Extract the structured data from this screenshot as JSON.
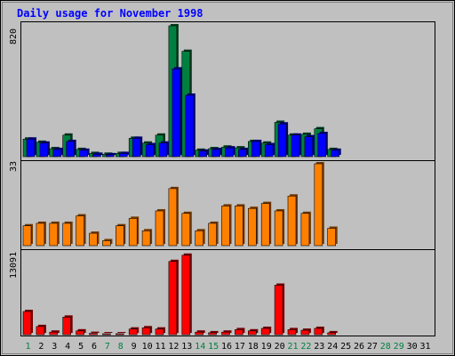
{
  "chart_data": [
    {
      "type": "bar",
      "title": "Daily usage for November 1998",
      "x": [
        1,
        2,
        3,
        4,
        5,
        6,
        7,
        8,
        9,
        10,
        11,
        12,
        13,
        14,
        15,
        16,
        17,
        18,
        19,
        20,
        21,
        22,
        23,
        24,
        25,
        26,
        27,
        28,
        29,
        30,
        31
      ],
      "weekend_days": [
        1,
        7,
        8,
        14,
        15,
        21,
        22,
        28,
        29
      ],
      "ytick_label": "820",
      "ylim": [
        0,
        820
      ],
      "series": [
        {
          "color": "#008040",
          "values": [
            110,
            90,
            50,
            135,
            45,
            20,
            15,
            20,
            115,
            85,
            135,
            820,
            660,
            40,
            50,
            60,
            55,
            95,
            85,
            215,
            135,
            140,
            175,
            45,
            0,
            0,
            0,
            0,
            0,
            0,
            0
          ]
        },
        {
          "color": "#0000ff",
          "values": [
            110,
            85,
            45,
            95,
            40,
            15,
            12,
            20,
            115,
            75,
            85,
            550,
            385,
            35,
            45,
            55,
            45,
            95,
            75,
            205,
            135,
            125,
            145,
            40,
            0,
            0,
            0,
            0,
            0,
            0,
            0
          ]
        }
      ]
    },
    {
      "type": "bar",
      "ytick_label": "33",
      "ylim": [
        0,
        33
      ],
      "series": [
        {
          "color": "#ff8000",
          "values": [
            8,
            9,
            9,
            9,
            12,
            5,
            2,
            8,
            11,
            6,
            14,
            23,
            13,
            6,
            9,
            16,
            16,
            15,
            17,
            14,
            20,
            13,
            33,
            7,
            0,
            0,
            0,
            0,
            0,
            0,
            0
          ]
        }
      ]
    },
    {
      "type": "bar",
      "ytick_label": "13091",
      "ylim": [
        0,
        13091
      ],
      "series": [
        {
          "color": "#ff0000",
          "values": [
            3700,
            1300,
            400,
            2800,
            600,
            200,
            100,
            100,
            900,
            1100,
            900,
            11700,
            12700,
            400,
            300,
            400,
            800,
            600,
            1000,
            7900,
            800,
            700,
            1000,
            300,
            0,
            0,
            0,
            0,
            0,
            0,
            0
          ]
        }
      ]
    }
  ],
  "colors": {
    "background": "#c0c0c0",
    "title": "#0000ff",
    "weekday_label": "#000000",
    "weekend_label": "#008040"
  }
}
